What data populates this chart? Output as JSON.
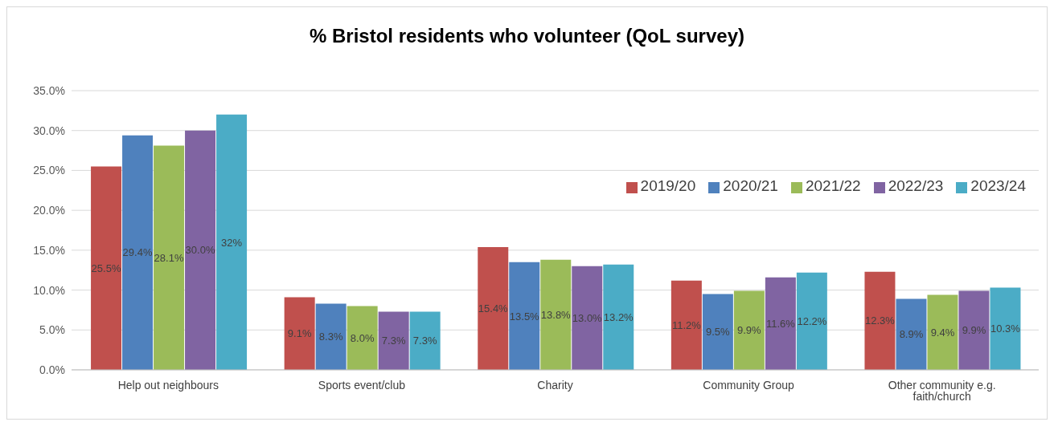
{
  "chart_data": {
    "type": "bar",
    "title": "% Bristol residents who volunteer (QoL survey)",
    "categories": [
      "Help out neighbours",
      "Sports event/club",
      "Charity",
      "Community Group",
      "Other community e.g. faith/church"
    ],
    "series": [
      {
        "name": "2019/20",
        "color": "#c0504d",
        "values": [
          25.5,
          9.1,
          15.4,
          11.2,
          12.3
        ],
        "value_labels": [
          "25.5%",
          "9.1%",
          "15.4%",
          "11.2%",
          "12.3%"
        ]
      },
      {
        "name": "2020/21",
        "color": "#4f81bd",
        "values": [
          29.4,
          8.3,
          13.5,
          9.5,
          8.9
        ],
        "value_labels": [
          "29.4%",
          "8.3%",
          "13.5%",
          "9.5%",
          "8.9%"
        ]
      },
      {
        "name": "2021/22",
        "color": "#9bbb59",
        "values": [
          28.1,
          8.0,
          13.8,
          9.9,
          9.4
        ],
        "value_labels": [
          "28.1%",
          "8.0%",
          "13.8%",
          "9.9%",
          "9.4%"
        ]
      },
      {
        "name": "2022/23",
        "color": "#8064a2",
        "values": [
          30.0,
          7.3,
          13.0,
          11.6,
          9.9
        ],
        "value_labels": [
          "30.0%",
          "7.3%",
          "13.0%",
          "11.6%",
          "9.9%"
        ]
      },
      {
        "name": "2023/24",
        "color": "#4bacc6",
        "values": [
          32,
          7.3,
          13.2,
          12.2,
          10.3
        ],
        "value_labels": [
          "32%",
          "7.3%",
          "13.2%",
          "12.2%",
          "10.3%"
        ]
      }
    ],
    "ylim": [
      0,
      35
    ],
    "yticks": [
      {
        "value": 0,
        "label": "0.0%"
      },
      {
        "value": 5,
        "label": "5.0%"
      },
      {
        "value": 10,
        "label": "10.0%"
      },
      {
        "value": 15,
        "label": "15.0%"
      },
      {
        "value": 20,
        "label": "20.0%"
      },
      {
        "value": 25,
        "label": "25.0%"
      },
      {
        "value": 30,
        "label": "30.0%"
      },
      {
        "value": 35,
        "label": "35.0%"
      }
    ],
    "grid": "y",
    "legend": "top right"
  }
}
